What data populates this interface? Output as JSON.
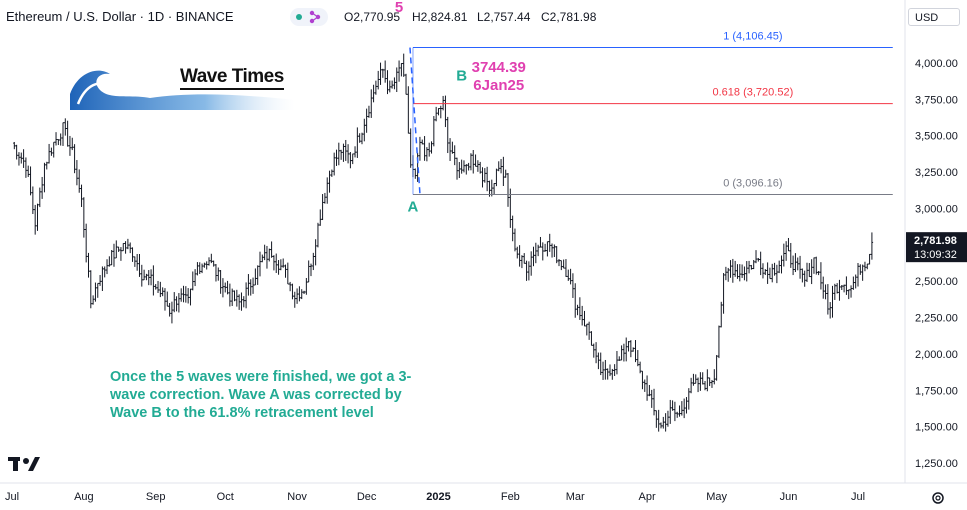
{
  "header": {
    "symbol": "Ethereum / U.S. Dollar · 1D · BINANCE",
    "open": "O2,770.95",
    "high": "H2,824.81",
    "low": "L2,757.44",
    "close": "C2,781.98"
  },
  "currency_button": "USD",
  "logo_text": "Wave Times",
  "annotation_note": "Once the 5 waves were finished, we got a 3-wave correction. Wave A was corrected by Wave B to the 61.8% retracement level",
  "last_price_label": "2,781.98",
  "countdown_label": "13:09:32",
  "chart_data": {
    "type": "candlestick",
    "y_ticks": [
      "4,000.00",
      "3,750.00",
      "3,500.00",
      "3,250.00",
      "3,000.00",
      "2,750.00",
      "2,500.00",
      "2,250.00",
      "2,000.00",
      "1,750.00",
      "1,500.00",
      "1,250.00"
    ],
    "y_tick_values": [
      4000,
      3750,
      3500,
      3250,
      3000,
      2750,
      2500,
      2250,
      2000,
      1750,
      1500,
      1250
    ],
    "ylim": [
      1140,
      4420
    ],
    "x_ticks": [
      "Jul",
      "Aug",
      "Sep",
      "Oct",
      "Nov",
      "Dec",
      "2025",
      "Feb",
      "Mar",
      "Apr",
      "May",
      "Jun",
      "Jul"
    ],
    "x_tick_days": [
      0,
      31,
      62,
      92,
      123,
      153,
      184,
      215,
      243,
      274,
      304,
      335,
      365
    ],
    "xlim": [
      -3,
      385
    ],
    "series": [
      {
        "values": [
          [
            0,
            3450
          ],
          [
            6,
            3300
          ],
          [
            10,
            2900
          ],
          [
            14,
            3300
          ],
          [
            18,
            3450
          ],
          [
            22,
            3550
          ],
          [
            26,
            3380
          ],
          [
            30,
            3050
          ],
          [
            34,
            2350
          ],
          [
            37,
            2500
          ],
          [
            42,
            2650
          ],
          [
            48,
            2750
          ],
          [
            52,
            2700
          ],
          [
            56,
            2550
          ],
          [
            60,
            2500
          ],
          [
            65,
            2400
          ],
          [
            68,
            2300
          ],
          [
            72,
            2400
          ],
          [
            76,
            2350
          ],
          [
            80,
            2600
          ],
          [
            85,
            2650
          ],
          [
            90,
            2500
          ],
          [
            94,
            2400
          ],
          [
            98,
            2350
          ],
          [
            102,
            2450
          ],
          [
            108,
            2650
          ],
          [
            112,
            2700
          ],
          [
            118,
            2550
          ],
          [
            122,
            2400
          ],
          [
            126,
            2450
          ],
          [
            130,
            2700
          ],
          [
            134,
            3050
          ],
          [
            138,
            3300
          ],
          [
            142,
            3400
          ],
          [
            146,
            3350
          ],
          [
            150,
            3500
          ],
          [
            154,
            3700
          ],
          [
            157,
            3850
          ],
          [
            160,
            3950
          ],
          [
            163,
            3800
          ],
          [
            166,
            3900
          ],
          [
            168,
            4000
          ],
          [
            170,
            3750
          ],
          [
            172,
            3300
          ],
          [
            174,
            3200
          ],
          [
            176,
            3450
          ],
          [
            178,
            3350
          ],
          [
            180,
            3400
          ],
          [
            183,
            3650
          ],
          [
            186,
            3720
          ],
          [
            188,
            3450
          ],
          [
            190,
            3350
          ],
          [
            192,
            3300
          ],
          [
            195,
            3250
          ],
          [
            198,
            3350
          ],
          [
            201,
            3300
          ],
          [
            204,
            3200
          ],
          [
            207,
            3150
          ],
          [
            210,
            3300
          ],
          [
            213,
            3200
          ],
          [
            216,
            2800
          ],
          [
            219,
            2650
          ],
          [
            222,
            2600
          ],
          [
            225,
            2700
          ],
          [
            228,
            2750
          ],
          [
            232,
            2750
          ],
          [
            236,
            2650
          ],
          [
            240,
            2550
          ],
          [
            243,
            2350
          ],
          [
            246,
            2250
          ],
          [
            249,
            2150
          ],
          [
            252,
            1950
          ],
          [
            255,
            1850
          ],
          [
            258,
            1900
          ],
          [
            262,
            1950
          ],
          [
            266,
            2100
          ],
          [
            270,
            1900
          ],
          [
            274,
            1750
          ],
          [
            277,
            1600
          ],
          [
            280,
            1500
          ],
          [
            284,
            1600
          ],
          [
            288,
            1580
          ],
          [
            292,
            1750
          ],
          [
            296,
            1800
          ],
          [
            300,
            1800
          ],
          [
            303,
            1850
          ],
          [
            305,
            2200
          ],
          [
            307,
            2500
          ],
          [
            310,
            2600
          ],
          [
            314,
            2550
          ],
          [
            318,
            2600
          ],
          [
            322,
            2650
          ],
          [
            326,
            2550
          ],
          [
            330,
            2600
          ],
          [
            334,
            2700
          ],
          [
            338,
            2600
          ],
          [
            342,
            2500
          ],
          [
            346,
            2650
          ],
          [
            348,
            2550
          ],
          [
            350,
            2450
          ],
          [
            352,
            2300
          ],
          [
            355,
            2450
          ],
          [
            358,
            2500
          ],
          [
            362,
            2450
          ],
          [
            366,
            2600
          ],
          [
            369,
            2650
          ],
          [
            371,
            2782
          ]
        ]
      }
    ],
    "fibonacci": {
      "levels": [
        {
          "ratio": "1",
          "price": 4106.45,
          "label": "1 (4,106.45)",
          "color": "#2962ff"
        },
        {
          "ratio": "0.618",
          "price": 3720.52,
          "label": "0.618 (3,720.52)",
          "color": "#f23645"
        },
        {
          "ratio": "0",
          "price": 3096.16,
          "label": "0 (3,096.16)",
          "color": "#787b86"
        }
      ],
      "start_day": 173,
      "end_day": 380
    },
    "wave_labels": [
      {
        "text": "5",
        "day": 167,
        "price": 4350,
        "color": "#e040b0"
      },
      {
        "text": "A",
        "day": 173,
        "price": 2980,
        "color": "#22ab94"
      },
      {
        "text": "B",
        "day": 194,
        "price": 3880,
        "color": "#22ab94"
      }
    ],
    "callout": {
      "line1": "3744.39",
      "line2": "6Jan25",
      "day": 210,
      "price": 3800,
      "color": "#e040b0"
    },
    "current_price": 2781.98
  },
  "colors": {
    "background": "#ffffff",
    "candle": "#131722",
    "accent_teal": "#22ab94",
    "accent_magenta": "#e040b0",
    "price_tag": "#131722",
    "fib_blue": "#2962ff",
    "fib_red": "#f23645",
    "fib_gray": "#787b86"
  }
}
